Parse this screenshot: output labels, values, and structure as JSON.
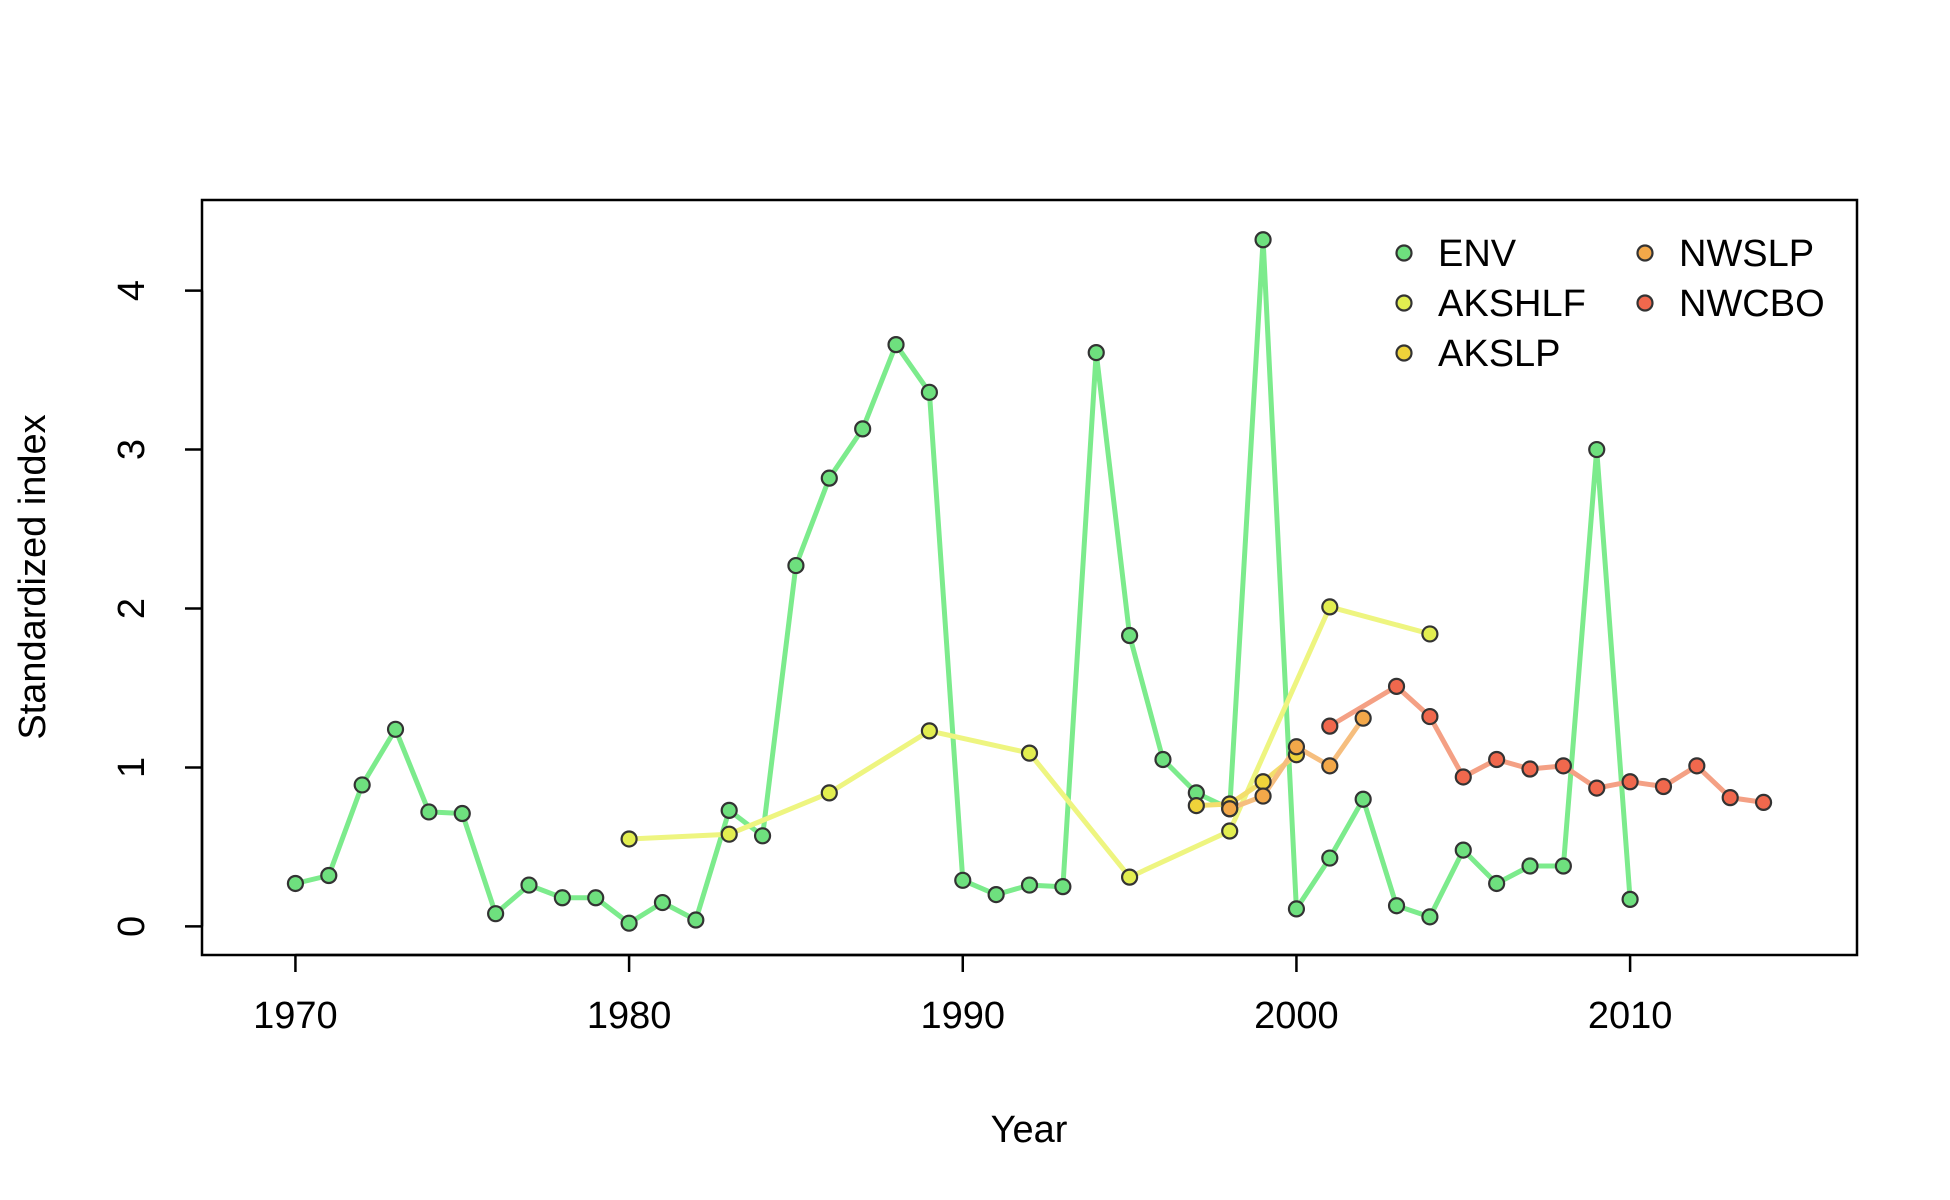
{
  "chart_data": {
    "type": "line",
    "title": "",
    "xlabel": "Year",
    "ylabel": "Standardized index",
    "xlim": [
      1967.2,
      2016.8
    ],
    "ylim": [
      0,
      4.5
    ],
    "xticks": [
      1970,
      1980,
      1990,
      2000,
      2010
    ],
    "yticks": [
      0,
      1,
      2,
      3,
      4
    ],
    "grid": false,
    "legend_position": "top-right",
    "markers": "circle",
    "series": [
      {
        "name": "ENV",
        "color": "#90EE90",
        "line_color": "#7CEB8C",
        "point_color": "#6EE07E",
        "x": [
          1970,
          1971,
          1972,
          1973,
          1974,
          1975,
          1976,
          1977,
          1978,
          1979,
          1980,
          1981,
          1982,
          1983,
          1984,
          1985,
          1986,
          1987,
          1988,
          1989,
          1990,
          1991,
          1992,
          1993,
          1994,
          1995,
          1996,
          1997,
          1998,
          1999,
          2000,
          2001,
          2002,
          2003,
          2004,
          2005,
          2006,
          2007,
          2008,
          2009,
          2010
        ],
        "y": [
          0.27,
          0.32,
          0.89,
          1.24,
          0.72,
          0.71,
          0.08,
          0.26,
          0.18,
          0.18,
          0.02,
          0.15,
          0.04,
          0.73,
          0.57,
          2.27,
          2.82,
          3.13,
          3.66,
          3.36,
          0.29,
          0.2,
          0.26,
          0.25,
          3.61,
          1.83,
          1.05,
          0.84,
          0.74,
          4.32,
          0.11,
          0.43,
          0.8,
          0.13,
          0.06,
          0.48,
          0.27,
          0.38,
          0.38,
          3.0,
          0.17
        ]
      },
      {
        "name": "AKSHLF",
        "color": "#E6F55A",
        "line_color": "#EEF580",
        "point_color": "#E2EE50",
        "x": [
          1980,
          1983,
          1986,
          1989,
          1992,
          1995,
          1998,
          2001,
          2004
        ],
        "y": [
          0.55,
          0.58,
          0.84,
          1.23,
          1.09,
          0.31,
          0.6,
          2.01,
          1.84
        ]
      },
      {
        "name": "AKSLP",
        "color": "#F2D43C",
        "line_color": "#F3DE6C",
        "point_color": "#EFD33A",
        "x": [
          1997,
          1998,
          1999,
          2000
        ],
        "y": [
          0.76,
          0.77,
          0.91,
          1.08
        ]
      },
      {
        "name": "NWSLP",
        "color": "#F5A84A",
        "line_color": "#F6BE7E",
        "point_color": "#F3A849",
        "x": [
          1998,
          1999,
          2000,
          2001,
          2002
        ],
        "y": [
          0.74,
          0.82,
          1.13,
          1.01,
          1.31
        ]
      },
      {
        "name": "NWCBO",
        "color": "#F26A4E",
        "line_color": "#F4A084",
        "point_color": "#F0684D",
        "x": [
          2001,
          2003,
          2004,
          2005,
          2006,
          2007,
          2008,
          2009,
          2010,
          2011,
          2012,
          2013,
          2014
        ],
        "y": [
          1.26,
          1.51,
          1.32,
          0.94,
          1.05,
          0.99,
          1.01,
          0.87,
          0.91,
          0.88,
          1.01,
          0.81,
          0.78
        ]
      }
    ]
  }
}
